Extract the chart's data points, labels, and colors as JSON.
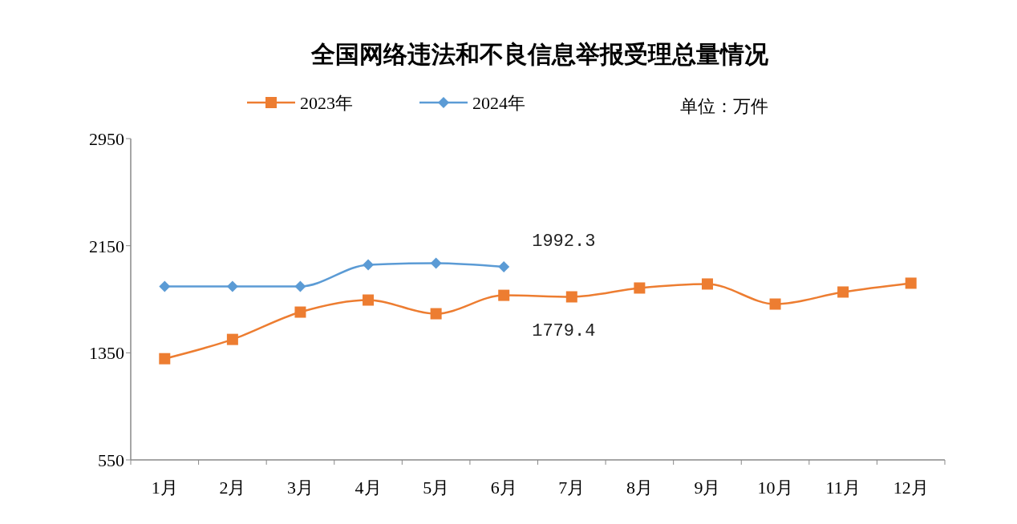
{
  "chart_data": {
    "type": "line",
    "title": "全国网络违法和不良信息举报受理总量情况",
    "categories": [
      "1月",
      "2月",
      "3月",
      "4月",
      "5月",
      "6月",
      "7月",
      "8月",
      "9月",
      "10月",
      "11月",
      "12月"
    ],
    "series": [
      {
        "name": "2023年",
        "color": "#ed7d31",
        "marker": "square",
        "values": [
          1306,
          1450,
          1654,
          1744,
          1642,
          1779.4,
          1768,
          1834,
          1864,
          1714,
          1804,
          1870
        ],
        "value_labels": [
          null,
          null,
          null,
          null,
          null,
          "1779.4",
          null,
          null,
          null,
          null,
          null,
          null
        ]
      },
      {
        "name": "2024年",
        "color": "#5b9bd5",
        "marker": "diamond",
        "values": [
          1846,
          1846,
          1846,
          2008,
          2020,
          1992.3,
          null,
          null,
          null,
          null,
          null,
          null
        ],
        "value_labels": [
          null,
          null,
          null,
          null,
          null,
          "1992.3",
          null,
          null,
          null,
          null,
          null,
          null
        ]
      }
    ],
    "ylim": [
      550,
      2950
    ],
    "yticks": [
      550,
      1350,
      2150,
      2950
    ],
    "grid": false,
    "legend": "top",
    "annotations": [
      "单位：万件"
    ]
  }
}
